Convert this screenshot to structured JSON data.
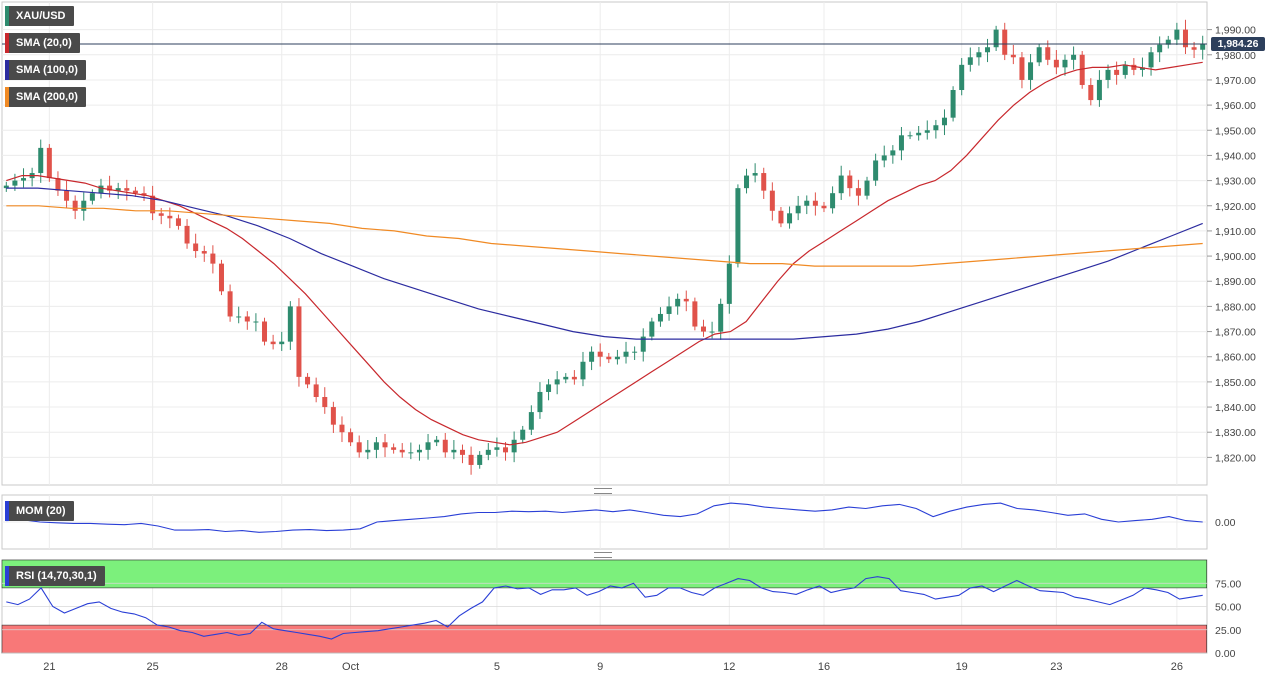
{
  "colors": {
    "up": "#2e8b6e",
    "down": "#e0524a",
    "sma20": "#c8282d",
    "sma100": "#2c2ca0",
    "sma200": "#f08a24",
    "mom": "#2a3fd6",
    "rsi": "#2a3fd6",
    "overbought": "#7cf07c",
    "oversold": "#f87878",
    "grid": "#ececec",
    "price_line": "#2d3f5c"
  },
  "legend": {
    "symbol": "XAU/USD",
    "sma20": "SMA (20,0)",
    "sma100": "SMA (100,0)",
    "sma200": "SMA (200,0)",
    "mom": "MOM (20)",
    "rsi": "RSI (14,70,30,1)"
  },
  "last_price_label": "1,984.26",
  "chart_data": [
    {
      "type": "candlestick",
      "ylim": [
        1813,
        1997
      ],
      "y_ticks": [
        "1,820.00",
        "1,830.00",
        "1,840.00",
        "1,850.00",
        "1,860.00",
        "1,870.00",
        "1,880.00",
        "1,890.00",
        "1,900.00",
        "1,910.00",
        "1,920.00",
        "1,930.00",
        "1,940.00",
        "1,950.00",
        "1,960.00",
        "1,970.00",
        "1,980.00",
        "1,990.00"
      ],
      "y_tick_values": [
        1820,
        1830,
        1840,
        1850,
        1860,
        1870,
        1880,
        1890,
        1900,
        1910,
        1920,
        1930,
        1940,
        1950,
        1960,
        1970,
        1980,
        1990
      ],
      "x_tick_labels": [
        "21",
        "25",
        "28",
        "Oct",
        "5",
        "9",
        "12",
        "16",
        "19",
        "23",
        "26"
      ],
      "x_tick_index": [
        5,
        17,
        32,
        40,
        57,
        69,
        84,
        95,
        111,
        122,
        136
      ],
      "last_price": 1984.26,
      "grid": true,
      "closes": [
        1928,
        1930,
        1931,
        1933,
        1943,
        1931,
        1926,
        1922,
        1918,
        1922,
        1925,
        1928,
        1926,
        1927,
        1926,
        1925,
        1924,
        1917,
        1916,
        1915,
        1912,
        1905,
        1902,
        1901,
        1897,
        1886,
        1876,
        1876,
        1874,
        1874,
        1866,
        1865,
        1866,
        1880,
        1852,
        1849,
        1844,
        1840,
        1833,
        1830,
        1826,
        1822,
        1823,
        1826,
        1824,
        1823,
        1822,
        1822,
        1823,
        1826,
        1827,
        1822,
        1823,
        1821,
        1817,
        1821,
        1823,
        1824,
        1822,
        1827,
        1831,
        1838,
        1846,
        1849,
        1851,
        1852,
        1851,
        1858,
        1862,
        1860,
        1859,
        1860,
        1862,
        1862,
        1868,
        1874,
        1877,
        1880,
        1883,
        1882,
        1872,
        1870,
        1870,
        1881,
        1897,
        1927,
        1932,
        1933,
        1926,
        1918,
        1913,
        1917,
        1920,
        1922,
        1920,
        1919,
        1925,
        1932,
        1927,
        1924,
        1930,
        1938,
        1940,
        1942,
        1948,
        1948,
        1949,
        1950,
        1952,
        1955,
        1966,
        1976,
        1979,
        1981,
        1983,
        1990,
        1980,
        1979,
        1970,
        1977,
        1983,
        1978,
        1975,
        1978,
        1980,
        1968,
        1962,
        1970,
        1974,
        1972,
        1976,
        1974,
        1975,
        1981,
        1984,
        1986,
        1990,
        1983,
        1982,
        1984.26
      ],
      "series": [
        {
          "name": "SMA (20,0)",
          "values": [
            1930,
            1932,
            1932,
            1931,
            1930,
            1929,
            1927,
            1926,
            1925,
            1924,
            1922,
            1920,
            1917,
            1914,
            1911,
            1907,
            1902,
            1897,
            1891,
            1885,
            1878,
            1871,
            1864,
            1857,
            1850,
            1844,
            1839,
            1835,
            1832,
            1829,
            1827,
            1826,
            1825,
            1826,
            1828,
            1830,
            1834,
            1838,
            1842,
            1846,
            1850,
            1854,
            1858,
            1862,
            1866,
            1869,
            1870,
            1874,
            1882,
            1890,
            1897,
            1902,
            1906,
            1910,
            1914,
            1918,
            1922,
            1925,
            1928,
            1930,
            1934,
            1940,
            1947,
            1954,
            1960,
            1965,
            1969,
            1972,
            1974,
            1975,
            1975,
            1976,
            1975,
            1974,
            1975,
            1976,
            1977
          ]
        },
        {
          "name": "SMA (100,0)",
          "values": [
            1927,
            1927,
            1926,
            1925,
            1924,
            1922,
            1919,
            1916,
            1912,
            1907,
            1901,
            1896,
            1891,
            1887,
            1883,
            1879,
            1876,
            1873,
            1870,
            1868,
            1867,
            1867,
            1867,
            1867,
            1867,
            1867,
            1868,
            1869,
            1871,
            1874,
            1878,
            1882,
            1886,
            1890,
            1894,
            1898,
            1903,
            1908,
            1913
          ]
        },
        {
          "name": "SMA (200,0)",
          "values": [
            1920,
            1920,
            1919,
            1919,
            1918,
            1918,
            1917,
            1916,
            1915,
            1914,
            1913,
            1911,
            1910,
            1908,
            1907,
            1905,
            1904,
            1903,
            1902,
            1901,
            1900,
            1899,
            1898,
            1897,
            1897,
            1896,
            1896,
            1896,
            1896,
            1897,
            1898,
            1899,
            1900,
            1901,
            1902,
            1903,
            1904,
            1905
          ]
        }
      ]
    },
    {
      "type": "line",
      "title": "MOM (20)",
      "ylim": [
        -1,
        1
      ],
      "y_ticks": [
        "0.00"
      ],
      "y_tick_values": [
        0
      ],
      "series": [
        {
          "name": "MOM (20)",
          "values": [
            0.05,
            0.08,
            0.0,
            -0.03,
            -0.05,
            -0.05,
            -0.08,
            -0.1,
            -0.05,
            -0.15,
            -0.3,
            -0.3,
            -0.28,
            -0.35,
            -0.32,
            -0.38,
            -0.35,
            -0.3,
            -0.28,
            -0.32,
            -0.3,
            -0.25,
            0.0,
            0.05,
            0.1,
            0.15,
            0.2,
            0.3,
            0.35,
            0.35,
            0.4,
            0.38,
            0.4,
            0.35,
            0.4,
            0.45,
            0.38,
            0.45,
            0.35,
            0.25,
            0.2,
            0.3,
            0.6,
            0.7,
            0.65,
            0.55,
            0.5,
            0.45,
            0.4,
            0.45,
            0.55,
            0.5,
            0.6,
            0.65,
            0.5,
            0.2,
            0.4,
            0.55,
            0.65,
            0.7,
            0.5,
            0.45,
            0.35,
            0.25,
            0.3,
            0.1,
            0.0,
            0.05,
            0.1,
            0.2,
            0.05,
            0.0
          ]
        }
      ]
    },
    {
      "type": "line",
      "title": "RSI (14,70,30,1)",
      "ylim": [
        0,
        100
      ],
      "y_ticks": [
        "0.00",
        "25.00",
        "50.00",
        "75.00"
      ],
      "y_tick_values": [
        0,
        25,
        50,
        75
      ],
      "overbought": 70,
      "oversold": 30,
      "series": [
        {
          "name": "RSI (14,70,30,1)",
          "values": [
            55,
            52,
            58,
            70,
            50,
            43,
            48,
            53,
            55,
            48,
            44,
            42,
            38,
            30,
            28,
            24,
            22,
            18,
            20,
            22,
            19,
            21,
            33,
            26,
            24,
            22,
            20,
            18,
            15,
            21,
            22,
            23,
            24,
            26,
            28,
            30,
            32,
            35,
            28,
            40,
            48,
            55,
            70,
            72,
            69,
            70,
            63,
            68,
            68,
            70,
            62,
            66,
            72,
            70,
            75,
            60,
            62,
            70,
            70,
            65,
            62,
            70,
            75,
            80,
            78,
            70,
            66,
            65,
            63,
            68,
            72,
            65,
            68,
            70,
            80,
            82,
            80,
            67,
            65,
            63,
            58,
            60,
            62,
            70,
            72,
            66,
            72,
            78,
            72,
            67,
            66,
            65,
            60,
            58,
            55,
            52,
            57,
            62,
            70,
            68,
            65,
            58,
            60,
            62
          ]
        }
      ]
    }
  ]
}
